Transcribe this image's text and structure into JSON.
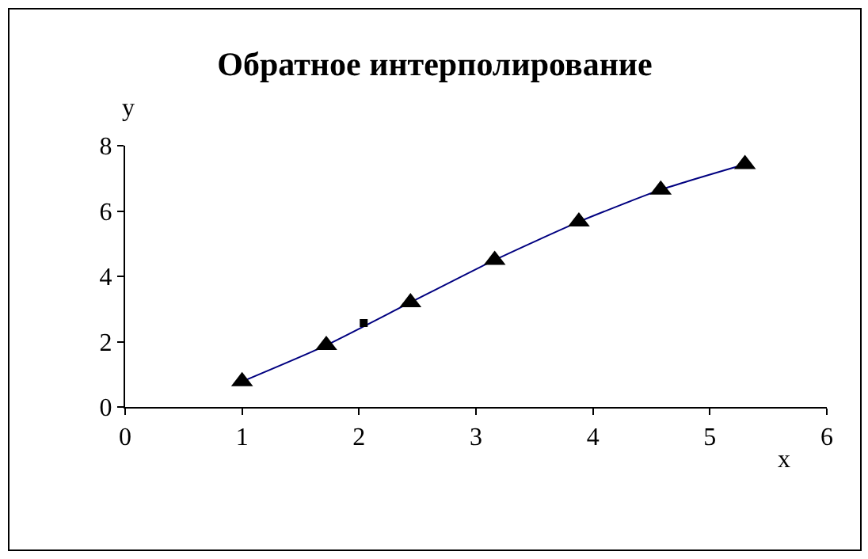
{
  "chart_data": {
    "type": "line",
    "title": "Обратное интерполирование",
    "xlabel": "x",
    "ylabel": "y",
    "xlim": [
      0,
      6
    ],
    "xticks": [
      0,
      1,
      2,
      3,
      4,
      5,
      6
    ],
    "ylim": [
      0,
      8
    ],
    "yticks": [
      0,
      2,
      4,
      6,
      8
    ],
    "grid": false,
    "series": [
      {
        "color": "#000080",
        "marker": "none",
        "x": [
          1.0,
          1.72,
          2.44,
          3.16,
          3.88,
          4.58,
          5.3
        ],
        "values": [
          0.78,
          1.89,
          3.2,
          4.5,
          5.67,
          6.65,
          7.43
        ]
      },
      {
        "type": "scatter",
        "color": "#000000",
        "marker": "triangle",
        "x": [
          1.0,
          1.72,
          2.44,
          3.16,
          3.88,
          4.58,
          5.3
        ],
        "values": [
          0.78,
          1.89,
          3.2,
          4.5,
          5.67,
          6.65,
          7.43
        ]
      },
      {
        "type": "scatter",
        "color": "#000000",
        "marker": "square",
        "x": [
          2.04
        ],
        "values": [
          2.57
        ]
      }
    ]
  }
}
